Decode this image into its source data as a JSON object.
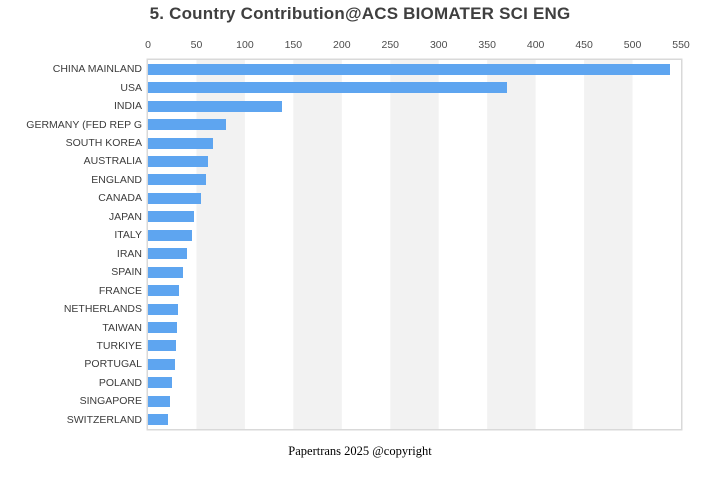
{
  "chart_data": {
    "type": "bar",
    "orientation": "horizontal",
    "title": "5. Country Contribution@ACS BIOMATER SCI ENG",
    "footer": "Papertrans 2025 @copyright",
    "categories": [
      "CHINA MAINLAND",
      "USA",
      "INDIA",
      "GERMANY (FED REP G",
      "SOUTH KOREA",
      "AUSTRALIA",
      "ENGLAND",
      "CANADA",
      "JAPAN",
      "ITALY",
      "IRAN",
      "SPAIN",
      "FRANCE",
      "NETHERLANDS",
      "TAIWAN",
      "TURKIYE",
      "PORTUGAL",
      "POLAND",
      "SINGAPORE",
      "SWITZERLAND"
    ],
    "values": [
      539,
      370,
      138,
      81,
      67,
      62,
      60,
      55,
      47,
      45,
      40,
      36,
      32,
      31,
      30,
      29,
      28,
      25,
      23,
      21
    ],
    "xlabel": "",
    "ylabel": "",
    "xlim": [
      0,
      550
    ],
    "x_ticks": [
      0,
      50,
      100,
      150,
      200,
      250,
      300,
      350,
      400,
      450,
      500,
      550
    ],
    "x_axis_position": "top",
    "legend": "none",
    "grid": "alternating-column-bands",
    "colors": {
      "bar": "#5ea5f0",
      "band": "#f2f2f2",
      "plot_border": "#d9d9d9",
      "title_text": "#3f3f3f",
      "axis_text": "#4d4d4d"
    }
  }
}
